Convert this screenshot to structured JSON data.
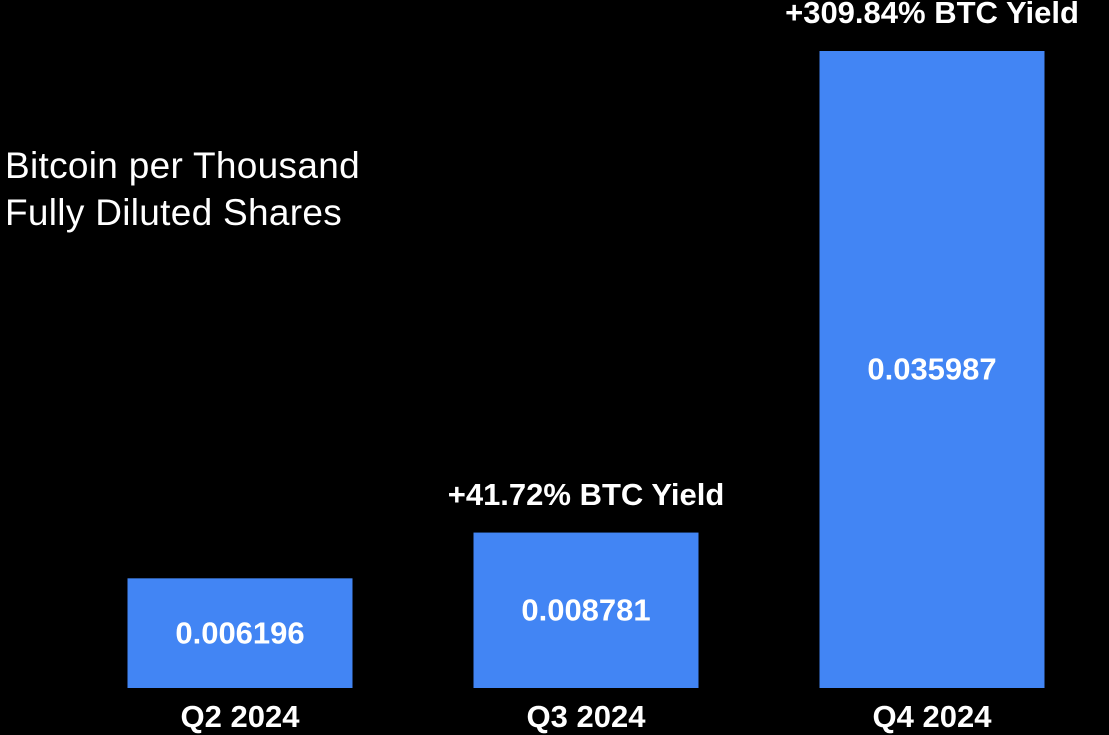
{
  "chart_data": {
    "type": "bar",
    "title": "Bitcoin per Thousand Fully Diluted Shares",
    "categories": [
      "Q2 2024",
      "Q3 2024",
      "Q4 2024"
    ],
    "values": [
      0.006196,
      0.008781,
      0.035987
    ],
    "color": "#4285f4",
    "annotations": [
      {
        "category": "Q3 2024",
        "text": "+41.72% BTC Yield"
      },
      {
        "category": "Q4 2024",
        "text": "+309.84% BTC Yield"
      }
    ]
  }
}
